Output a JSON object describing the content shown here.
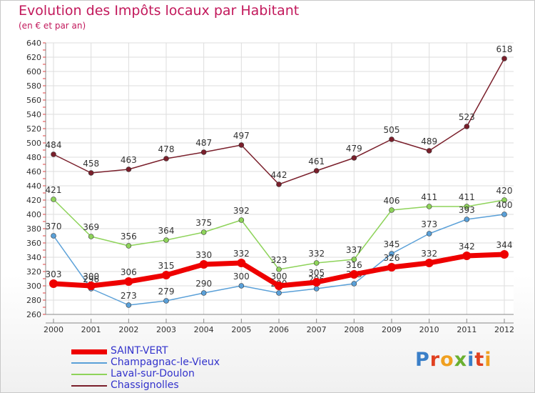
{
  "header": {
    "title": "Evolution des Impôts locaux par Habitant",
    "subtitle": "(en € et par an)"
  },
  "logo": {
    "text": "Proxiti",
    "letter_colors": [
      "#3a7fc8",
      "#e04020",
      "#f0a020",
      "#6ab030",
      "#3a7fc8",
      "#e04020",
      "#f0a020"
    ]
  },
  "chart_data": {
    "type": "line",
    "title": "Evolution des Impôts locaux par Habitant",
    "subtitle": "(en € et par an)",
    "xlabel": "",
    "ylabel": "",
    "categories": [
      "2000",
      "2001",
      "2002",
      "2003",
      "2004",
      "2005",
      "2006",
      "2007",
      "2008",
      "2009",
      "2010",
      "2011",
      "2012"
    ],
    "ylim": [
      260,
      640
    ],
    "yticks": [
      "260",
      "280",
      "300",
      "320",
      "340",
      "360",
      "380",
      "400",
      "420",
      "440",
      "460",
      "480",
      "500",
      "520",
      "540",
      "560",
      "580",
      "600",
      "620",
      "640"
    ],
    "grid": true,
    "legend_position": "bottom-left",
    "series": [
      {
        "name": "Chassignolles",
        "color": "#7a1f2b",
        "values": [
          484,
          458,
          463,
          478,
          487,
          497,
          442,
          461,
          479,
          505,
          489,
          523,
          618
        ],
        "labels": [
          "484",
          "458",
          "463",
          "478",
          "487",
          "497",
          "442",
          "461",
          "479",
          "505",
          "489",
          "523",
          "618"
        ]
      },
      {
        "name": "Laval-sur-Doulon",
        "color": "#8ed35a",
        "values": [
          421,
          369,
          356,
          364,
          375,
          392,
          323,
          332,
          337,
          406,
          411,
          411,
          420
        ],
        "labels": [
          "421",
          "369",
          "356",
          "364",
          "375",
          "392",
          "323",
          "332",
          "337",
          "406",
          "411",
          "411",
          "420"
        ]
      },
      {
        "name": "Champagnac-le-Vieux",
        "color": "#5aa0d8",
        "values": [
          370,
          296,
          273,
          279,
          290,
          300,
          290,
          296,
          303,
          345,
          373,
          393,
          400
        ],
        "labels": [
          "370",
          "296",
          "273",
          "279",
          "290",
          "300",
          "290",
          "296",
          "303",
          "345",
          "373",
          "393",
          "400"
        ]
      },
      {
        "name": "SAINT-VERT",
        "color": "#ee0000",
        "values": [
          303,
          300,
          306,
          315,
          330,
          332,
          300,
          305,
          316,
          326,
          332,
          342,
          344
        ],
        "labels": [
          "303",
          "300",
          "306",
          "315",
          "330",
          "332",
          "300",
          "305",
          "316",
          "326",
          "332",
          "342",
          "344"
        ]
      }
    ]
  },
  "legend": {
    "items": [
      {
        "name": "SAINT-VERT",
        "color": "#ee0000",
        "width": 7
      },
      {
        "name": "Champagnac-le-Vieux",
        "color": "#5aa0d8",
        "width": 1.5
      },
      {
        "name": "Laval-sur-Doulon",
        "color": "#8ed35a",
        "width": 1.5
      },
      {
        "name": "Chassignolles",
        "color": "#7a1f2b",
        "width": 1.5
      }
    ]
  }
}
